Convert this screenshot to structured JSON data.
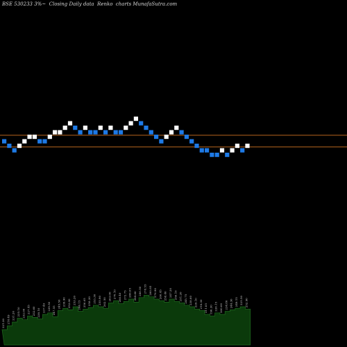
{
  "header": {
    "title": "BSE 530233 3%~  Closing Daily data  Renko  charts MunafaSutra.com"
  },
  "colors": {
    "background": "#000000",
    "up_brick": "#ffffff",
    "down_brick": "#1e7ae6",
    "reference_line": "#b8661e",
    "volume_fill": "#0b3a0b",
    "volume_line": "#1f6b1f"
  },
  "chart_data": {
    "type": "renko",
    "title": "BSE 530233 3%~  Closing Daily data  Renko  charts MunafaSutra.com",
    "brick_levels": [
      1,
      0,
      -1,
      0,
      1,
      2,
      2,
      1,
      1,
      2,
      3,
      3,
      4,
      5,
      4,
      3,
      4,
      3,
      3,
      4,
      3,
      4,
      3,
      3,
      4,
      5,
      6,
      5,
      4,
      3,
      2,
      1,
      2,
      3,
      4,
      3,
      2,
      1,
      0,
      -1,
      -1,
      -2,
      -2,
      -1,
      -2,
      -1,
      0,
      -1,
      0
    ],
    "brick_directions": [
      "down",
      "down",
      "down",
      "up",
      "up",
      "up",
      "up",
      "down",
      "down",
      "up",
      "up",
      "up",
      "up",
      "up",
      "down",
      "down",
      "up",
      "down",
      "down",
      "up",
      "down",
      "up",
      "down",
      "down",
      "up",
      "up",
      "up",
      "down",
      "down",
      "down",
      "down",
      "down",
      "up",
      "up",
      "up",
      "down",
      "down",
      "down",
      "down",
      "down",
      "down",
      "down",
      "down",
      "up",
      "down",
      "up",
      "up",
      "down",
      "up"
    ],
    "reference_levels": [
      2.35,
      -0.25
    ],
    "volume": {
      "values": [
        20,
        25,
        30,
        35,
        33,
        38,
        36,
        34,
        40,
        42,
        37,
        45,
        48,
        46,
        50,
        44,
        47,
        49,
        52,
        50,
        48,
        55,
        58,
        54,
        57,
        60,
        56,
        62,
        65,
        63,
        60,
        58,
        56,
        60,
        57,
        55,
        52,
        50,
        47,
        45,
        40,
        38,
        42,
        40,
        44,
        46,
        48,
        50,
        47
      ],
      "labels": [
        "221.30",
        "218.49",
        "231.20",
        "235.10",
        "232.00",
        "227.45",
        "232.60",
        "238.10",
        "237.49",
        "239.50",
        "247.55",
        "245.50",
        "239.90",
        "252.00",
        "253.20",
        "246.15",
        "256.65",
        "258.30",
        "253.30",
        "255.90",
        "262.50",
        "263.00",
        "270.10",
        "266.40",
        "272.75",
        "286.05",
        "284.60",
        "286.50",
        "278.55",
        "280.85",
        "276.90",
        "260.45",
        "258.40",
        "247.20",
        "256.10",
        "251.20",
        "245.75",
        "238.60",
        "229.10",
        "218.30",
        "211.85",
        "190.30",
        "226.15",
        "200.00",
        "234.80",
        "244.30",
        "249.15",
        "225.50",
        "252.90"
      ]
    }
  }
}
